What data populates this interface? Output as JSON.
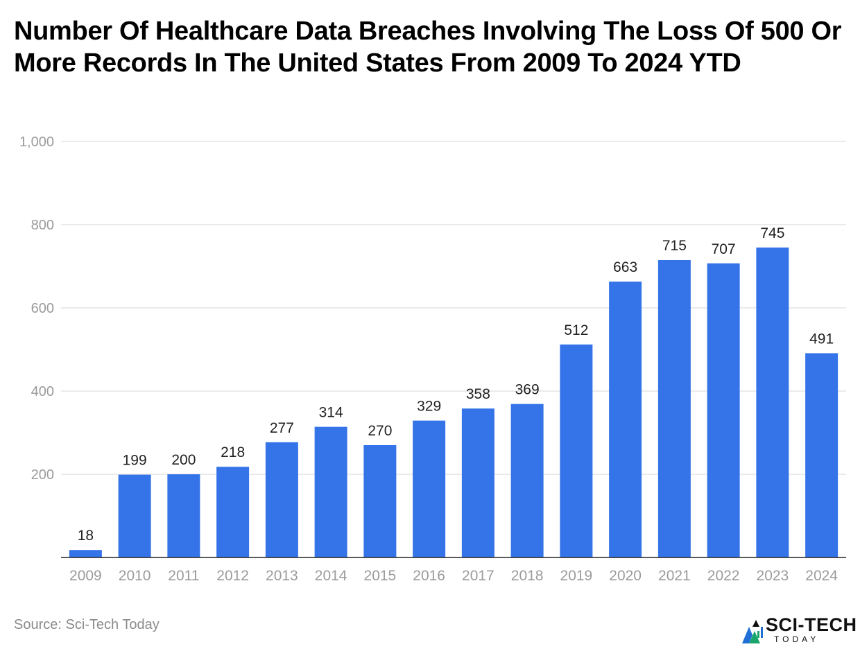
{
  "chart_data": {
    "type": "bar",
    "title": "Number Of Healthcare Data Breaches Involving The Loss Of 500 Or More Records In The United States From 2009 To 2024 YTD",
    "categories": [
      "2009",
      "2010",
      "2011",
      "2012",
      "2013",
      "2014",
      "2015",
      "2016",
      "2017",
      "2018",
      "2019",
      "2020",
      "2021",
      "2022",
      "2023",
      "2024"
    ],
    "values": [
      18,
      199,
      200,
      218,
      277,
      314,
      270,
      329,
      358,
      369,
      512,
      663,
      715,
      707,
      745,
      491
    ],
    "data_labels": [
      "18",
      "199",
      "200",
      "218",
      "277",
      "314",
      "270",
      "329",
      "358",
      "369",
      "512",
      "663",
      "715",
      "707",
      "745",
      "491"
    ],
    "yticks": [
      200,
      400,
      600,
      800,
      1000
    ],
    "ytick_labels": [
      "200",
      "400",
      "600",
      "800",
      "1,000"
    ],
    "ylim": [
      0,
      1000
    ],
    "xlabel": "",
    "ylabel": "",
    "grid": true,
    "bar_color": "#3474e8",
    "grid_color": "#dddddd",
    "axis_color": "#222222",
    "tick_label_color": "#9b9b9b",
    "data_label_color": "#222222"
  },
  "footer": {
    "source": "Source: Sci-Tech Today"
  },
  "logo": {
    "name": "SCI-TECH",
    "sub": "TODAY",
    "icon": "sci-tech-logo-icon",
    "colors": [
      "#1f6fd6",
      "#1aa66a",
      "#111111"
    ]
  }
}
